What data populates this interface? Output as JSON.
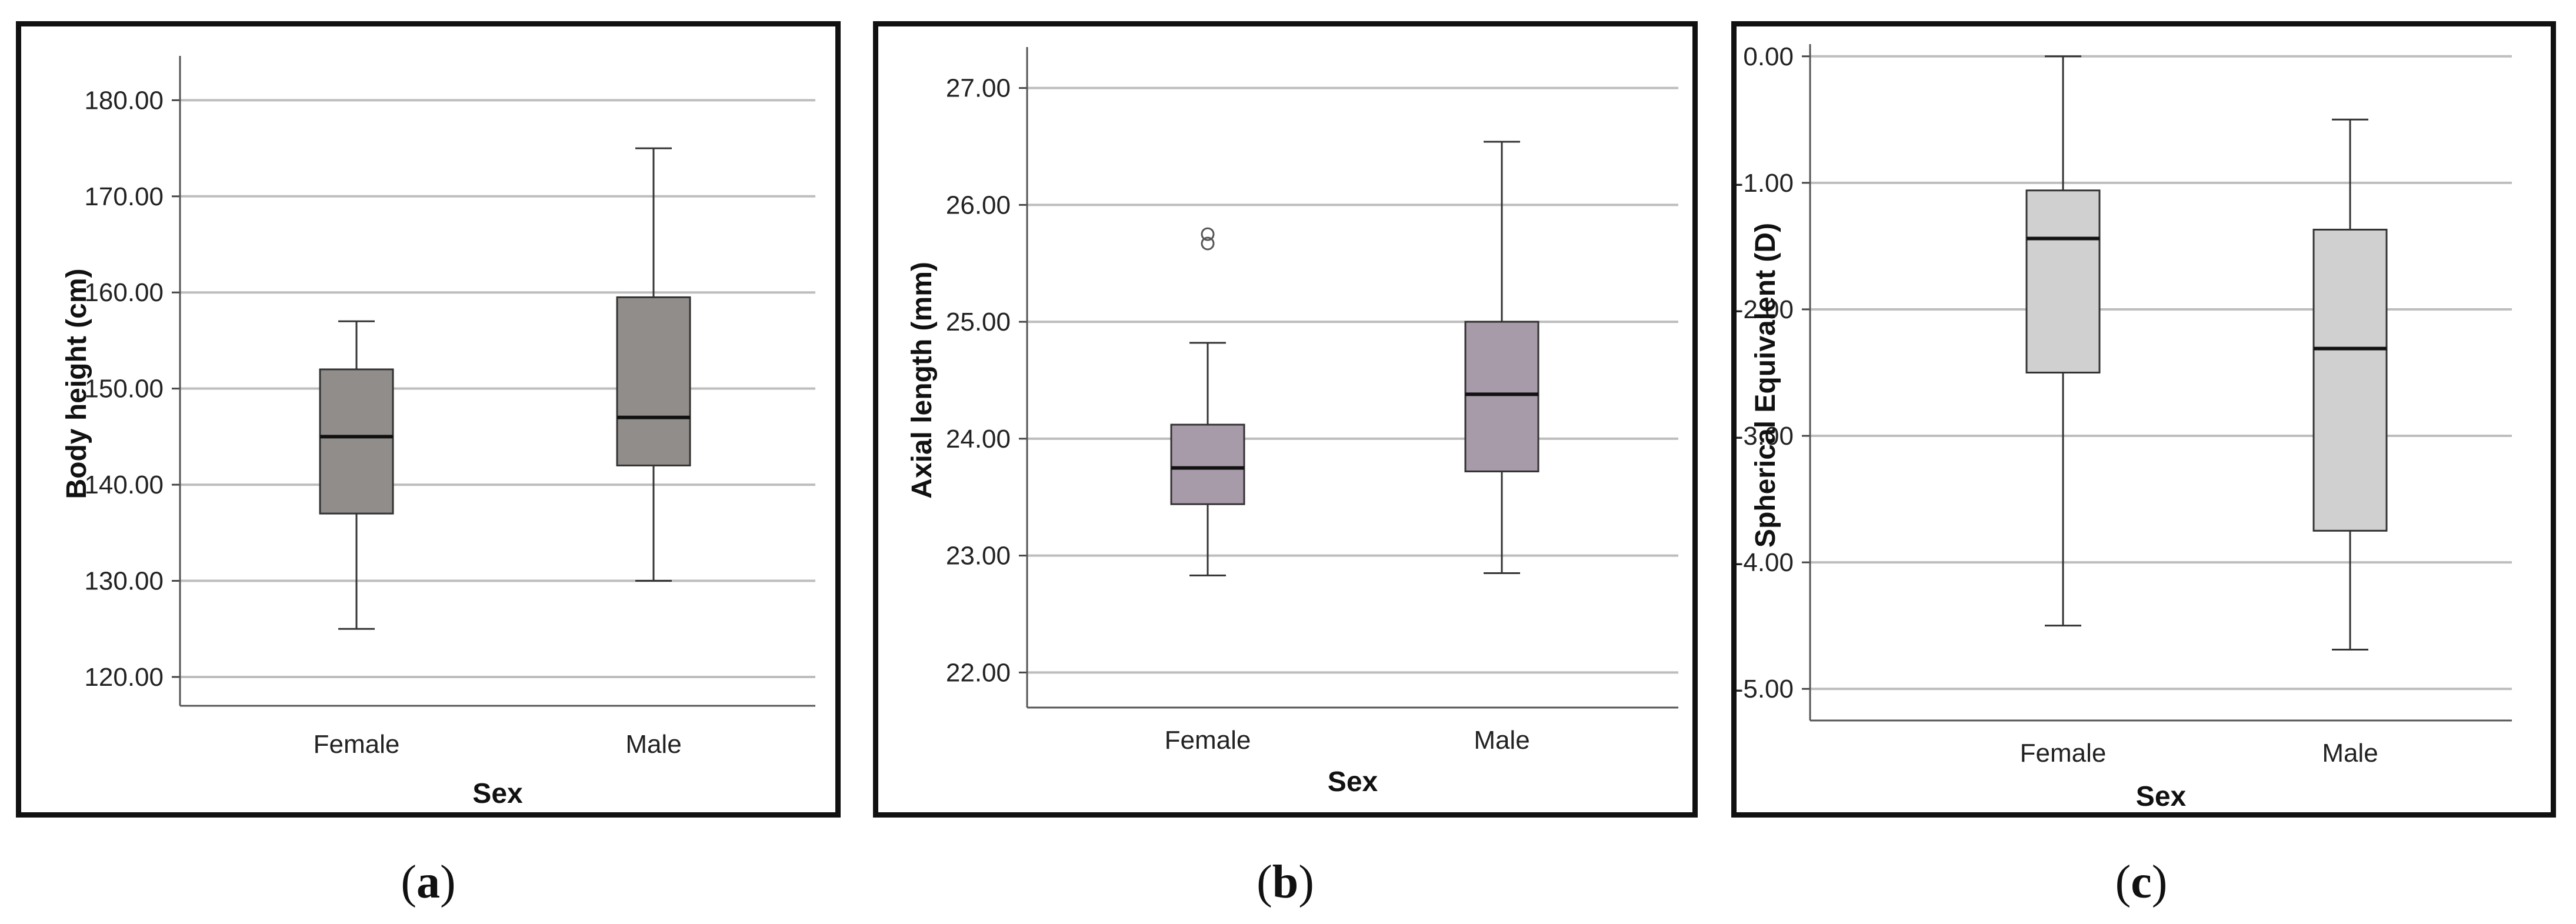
{
  "chart_data": [
    {
      "type": "boxplot",
      "panel_label": "a",
      "title": "",
      "xlabel": "Sex",
      "ylabel": "Body height (cm)",
      "ylim": [
        117,
        184
      ],
      "y_ticks": [
        "120.00",
        "130.00",
        "140.00",
        "150.00",
        "160.00",
        "170.00",
        "180.00"
      ],
      "y_tick_values": [
        120,
        130,
        140,
        150,
        160,
        170,
        180
      ],
      "categories": [
        "Female",
        "Male"
      ],
      "fill_color": "#918d8a",
      "boxes": [
        {
          "name": "Female",
          "min": 125.0,
          "q1": 137.0,
          "median": 145.0,
          "q3": 152.0,
          "max": 157.0,
          "outliers": []
        },
        {
          "name": "Male",
          "min": 130.0,
          "q1": 142.0,
          "median": 147.0,
          "q3": 159.5,
          "max": 175.0,
          "outliers": []
        }
      ]
    },
    {
      "type": "boxplot",
      "panel_label": "b",
      "title": "",
      "xlabel": "Sex",
      "ylabel": "Axial length (mm)",
      "ylim": [
        21.7,
        27.3
      ],
      "y_ticks": [
        "22.00",
        "23.00",
        "24.00",
        "25.00",
        "26.00",
        "27.00"
      ],
      "y_tick_values": [
        22,
        23,
        24,
        25,
        26,
        27
      ],
      "categories": [
        "Female",
        "Male"
      ],
      "fill_color": "#a89ba9",
      "boxes": [
        {
          "name": "Female",
          "min": 22.83,
          "q1": 23.44,
          "median": 23.75,
          "q3": 24.12,
          "max": 24.82,
          "outliers": [
            25.67,
            25.75
          ]
        },
        {
          "name": "Male",
          "min": 22.85,
          "q1": 23.72,
          "median": 24.38,
          "q3": 25.0,
          "max": 26.54,
          "outliers": []
        }
      ]
    },
    {
      "type": "boxplot",
      "panel_label": "c",
      "title": "",
      "xlabel": "Sex",
      "ylabel": "Spherical Equivalent (D)",
      "ylim": [
        -5.25,
        0.05
      ],
      "y_ticks": [
        "0.00",
        "-1.00",
        "-2.00",
        "-3.00",
        "-4.00",
        "-5.00"
      ],
      "y_tick_values": [
        0,
        -1,
        -2,
        -3,
        -4,
        -5
      ],
      "categories": [
        "Female",
        "Male"
      ],
      "fill_color": "#d0d0d0",
      "boxes": [
        {
          "name": "Female",
          "min": -4.5,
          "q1": -2.5,
          "median": -1.44,
          "q3": -1.06,
          "max": 0.0,
          "outliers": []
        },
        {
          "name": "Male",
          "min": -4.69,
          "q1": -3.75,
          "median": -2.31,
          "q3": -1.37,
          "max": -0.5,
          "outliers": []
        }
      ]
    }
  ],
  "captions": [
    "a",
    "b",
    "c"
  ]
}
